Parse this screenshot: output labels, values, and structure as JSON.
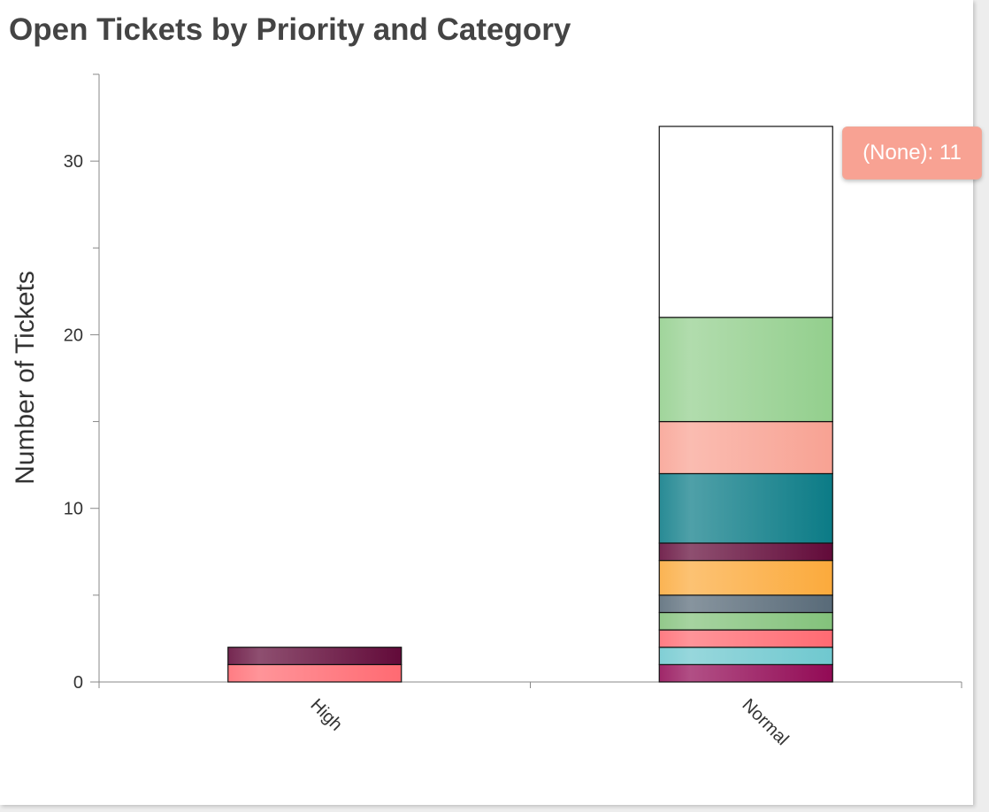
{
  "chart_data": {
    "type": "bar",
    "stacked": true,
    "title": "Open Tickets by Priority and Category",
    "ylabel": "Number of Tickets",
    "xlabel": "",
    "categories": [
      "High",
      "Normal"
    ],
    "ylim": [
      0,
      35
    ],
    "yticks": [
      0,
      10,
      20,
      30
    ],
    "legend": "none",
    "grid": false,
    "series": [
      {
        "values": [
          1,
          1
        ],
        "colors": [
          "#ff6a72",
          "#920a55"
        ]
      },
      {
        "values": [
          1,
          1
        ],
        "colors": [
          "#620a39",
          "#6fc8cf"
        ]
      },
      {
        "values": [
          0,
          1
        ],
        "colors": [
          "#ff6a72",
          "#ff6a72"
        ]
      },
      {
        "values": [
          0,
          1
        ],
        "colors": [
          "#83c27b",
          "#83c27b"
        ]
      },
      {
        "values": [
          0,
          1
        ],
        "colors": [
          "#586a78",
          "#586a78"
        ]
      },
      {
        "values": [
          0,
          2
        ],
        "colors": [
          "#fbaa3c",
          "#fbaa3c"
        ]
      },
      {
        "values": [
          0,
          1
        ],
        "colors": [
          "#620a39",
          "#620a39"
        ]
      },
      {
        "values": [
          0,
          4
        ],
        "colors": [
          "#0b7b86",
          "#0b7b86"
        ]
      },
      {
        "values": [
          0,
          3
        ],
        "colors": [
          "#f8a293",
          "#f8a293"
        ]
      },
      {
        "values": [
          0,
          6
        ],
        "colors": [
          "#93cf8d",
          "#93cf8d"
        ]
      },
      {
        "values": [
          0,
          11
        ],
        "colors": [
          "#ffffff",
          "#ffffff"
        ]
      }
    ],
    "tooltip": "(None): 11"
  }
}
